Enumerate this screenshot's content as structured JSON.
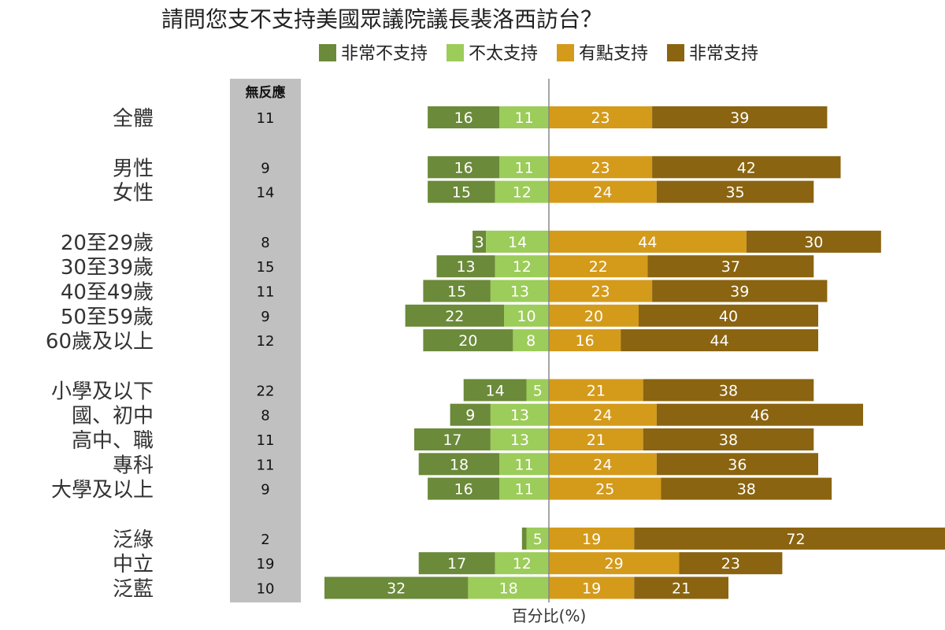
{
  "chart_data": {
    "type": "bar",
    "orientation": "horizontal-diverging",
    "title": "請問您支不支持美國眾議院議長裴洛西訪台？",
    "xlabel": "百分比(%)",
    "no_response_header": "無反應",
    "legend_position": "top",
    "series": [
      {
        "name": "非常不支持",
        "color": "#6b8a3a",
        "direction": "left"
      },
      {
        "name": "不太支持",
        "color": "#9ccc5a",
        "direction": "left"
      },
      {
        "name": "有點支持",
        "color": "#d49a1a",
        "direction": "right"
      },
      {
        "name": "非常支持",
        "color": "#8a6410",
        "direction": "right"
      }
    ],
    "groups": [
      {
        "rows": [
          {
            "label": "全體",
            "no_response": "11",
            "values": [
              16,
              11,
              23,
              39
            ]
          }
        ]
      },
      {
        "rows": [
          {
            "label": "男性",
            "no_response": "9",
            "values": [
              16,
              11,
              23,
              42
            ]
          },
          {
            "label": "女性",
            "no_response": "14",
            "values": [
              15,
              12,
              24,
              35
            ]
          }
        ]
      },
      {
        "rows": [
          {
            "label": "20至29歲",
            "no_response": "8",
            "values": [
              3,
              14,
              44,
              30
            ]
          },
          {
            "label": "30至39歲",
            "no_response": "15",
            "values": [
              13,
              12,
              22,
              37
            ]
          },
          {
            "label": "40至49歲",
            "no_response": "11",
            "values": [
              15,
              13,
              23,
              39
            ]
          },
          {
            "label": "50至59歲",
            "no_response": "9",
            "values": [
              22,
              10,
              20,
              40
            ]
          },
          {
            "label": "60歲及以上",
            "no_response": "12",
            "values": [
              20,
              8,
              16,
              44
            ]
          }
        ]
      },
      {
        "rows": [
          {
            "label": "小學及以下",
            "no_response": "22",
            "values": [
              14,
              5,
              21,
              38
            ]
          },
          {
            "label": "國、初中",
            "no_response": "8",
            "values": [
              9,
              13,
              24,
              46
            ]
          },
          {
            "label": "高中、職",
            "no_response": "11",
            "values": [
              17,
              13,
              21,
              38
            ]
          },
          {
            "label": "專科",
            "no_response": "11",
            "values": [
              18,
              11,
              24,
              36
            ]
          },
          {
            "label": "大學及以上",
            "no_response": "9",
            "values": [
              16,
              11,
              25,
              38
            ]
          }
        ]
      },
      {
        "rows": [
          {
            "label": "泛綠",
            "no_response": "2",
            "values": [
              1,
              5,
              19,
              72
            ]
          },
          {
            "label": "中立",
            "no_response": "19",
            "values": [
              17,
              12,
              29,
              23
            ]
          },
          {
            "label": "泛藍",
            "no_response": "10",
            "values": [
              32,
              18,
              19,
              21
            ]
          }
        ]
      }
    ]
  }
}
